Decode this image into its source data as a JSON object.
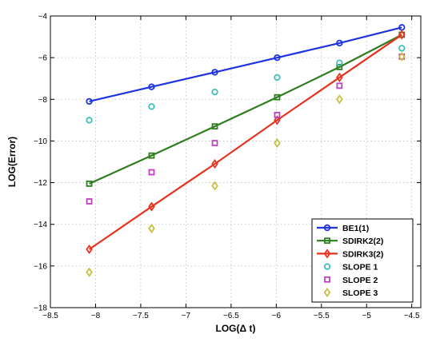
{
  "chart_data": {
    "type": "line",
    "title": "",
    "xlabel": "LOG(Δ t)",
    "ylabel": "LOG(Error)",
    "xlim": [
      -8.5,
      -4.4
    ],
    "ylim": [
      -18,
      -4
    ],
    "xticks": [
      -8.5,
      -8,
      -7.5,
      -7,
      -6.5,
      -6,
      -5.5,
      -5,
      -4.5
    ],
    "xtick_labels": [
      "−8.5",
      "−8",
      "−7.5",
      "−7",
      "−6.5",
      "−6",
      "−5.5",
      "−5",
      "−4.5"
    ],
    "yticks": [
      -18,
      -16,
      -14,
      -12,
      -10,
      -8,
      -6,
      -4
    ],
    "ytick_labels": [
      "−18",
      "−16",
      "−14",
      "−12",
      "−10",
      "−8",
      "−6",
      "−4"
    ],
    "grid": true,
    "legend_position": "bottom-right",
    "x": [
      -8.07,
      -7.38,
      -6.68,
      -5.99,
      -5.3,
      -4.61
    ],
    "series": [
      {
        "name": "BE1(1)",
        "color": "#1f33e0",
        "marker": "circle",
        "line": true,
        "values": [
          -8.1,
          -7.4,
          -6.7,
          -6.0,
          -5.3,
          -4.55
        ]
      },
      {
        "name": "SDIRK2(2)",
        "color": "#2e7d1e",
        "marker": "square",
        "line": true,
        "values": [
          -12.05,
          -10.7,
          -9.3,
          -7.9,
          -6.45,
          -4.9
        ]
      },
      {
        "name": "SDIRK3(2)",
        "color": "#e8321e",
        "marker": "diamond",
        "line": true,
        "values": [
          -15.2,
          -13.15,
          -11.1,
          -9.0,
          -6.95,
          -4.9
        ]
      },
      {
        "name": "SLOPE 1",
        "color": "#3fbfbf",
        "marker": "circle",
        "line": false,
        "values": [
          -9.0,
          -8.35,
          -7.65,
          -6.95,
          -6.25,
          -5.55
        ]
      },
      {
        "name": "SLOPE 2",
        "color": "#c040c0",
        "marker": "square",
        "line": false,
        "values": [
          -12.9,
          -11.5,
          -10.1,
          -8.75,
          -7.35,
          -5.95
        ]
      },
      {
        "name": "SLOPE 3",
        "color": "#c8c040",
        "marker": "diamond",
        "line": false,
        "values": [
          -16.3,
          -14.2,
          -12.15,
          -10.1,
          -8.0,
          -5.95
        ]
      }
    ]
  }
}
